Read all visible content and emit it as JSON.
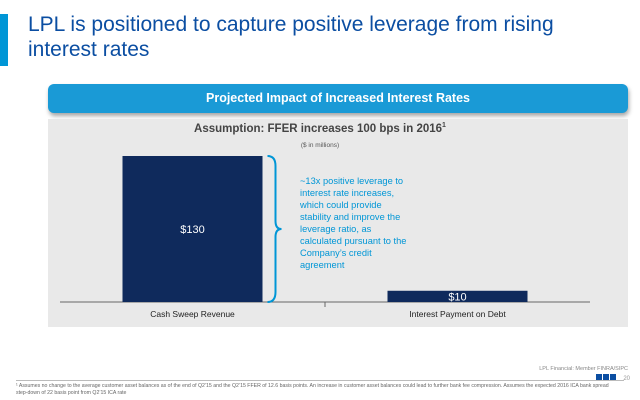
{
  "header": {
    "title": "LPL is positioned to capture positive leverage from rising interest rates"
  },
  "banner": {
    "text": "Projected Impact of Increased Interest Rates"
  },
  "chart_header": {
    "assumption": "Assumption: FFER increases 100 bps in 2016",
    "assumption_footnote": "1",
    "units": "($ in millions)"
  },
  "annotation": {
    "text": "~13x positive leverage to interest rate increases, which could provide stability and improve the leverage ratio, as calculated pursuant to the Company’s credit agreement"
  },
  "chart_data": {
    "type": "bar",
    "categories": [
      "Cash Sweep Revenue",
      "Interest Payment on Debt"
    ],
    "values": [
      130,
      10
    ],
    "value_labels": [
      "$130",
      "$10"
    ],
    "ylim": [
      0,
      130
    ],
    "grid": false,
    "colors": {
      "bar": "#0f2a5c",
      "bar_label": "#ffffff",
      "bracket": "#0096d6",
      "axis": "#666666"
    }
  },
  "footer": {
    "brand": "LPL Financial: Member FINRA/SIPC",
    "page_number": "20",
    "footnote": "¹ Assumes no change to the average customer asset balances as of the end of Q2’15 and the Q2’15 FFER of 12.6 basis points. An increase in customer asset balances could lead to further bank fee compression. Assumes the expected 2016 ICA bank spread step-down of 22 basis point from Q2’15 ICA rate",
    "logo_icon": "lpl-logo-icon"
  },
  "colors": {
    "title": "#0b4ea2",
    "accent": "#0096d6",
    "banner": "#1a9ad6",
    "panel": "#e9e9e9"
  }
}
